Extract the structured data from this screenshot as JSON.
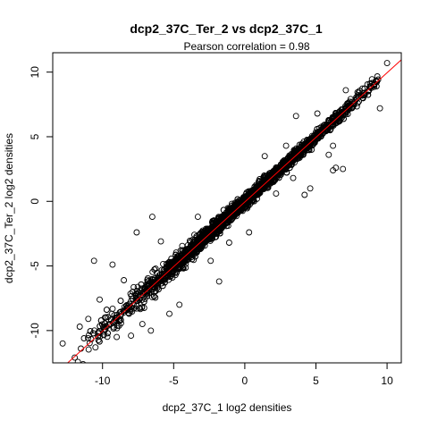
{
  "chart_data": {
    "type": "scatter",
    "title": "dcp2_37C_Ter_2 vs dcp2_37C_1",
    "subtitle": "Pearson correlation =  0.98",
    "xlabel": "dcp2_37C_1 log2 densities",
    "ylabel": "dcp2_37C_Ter_2 log2 densities",
    "xlim": [
      -13.5,
      11
    ],
    "ylim": [
      -12.5,
      11.5
    ],
    "xticks": [
      -10,
      -5,
      0,
      5,
      10
    ],
    "yticks": [
      -10,
      -5,
      0,
      5,
      10
    ],
    "grid": false,
    "marker": "open-circle",
    "point_color": "#000000",
    "fit_line": {
      "intercept": -0.05,
      "slope": 1.0,
      "color": "#ff0000"
    },
    "outliers": [
      {
        "x": -12.8,
        "y": -11.0
      },
      {
        "x": -11.3,
        "y": -10.6
      },
      {
        "x": -11.0,
        "y": -9.1
      },
      {
        "x": -10.5,
        "y": -11.3
      },
      {
        "x": -10.2,
        "y": -7.6
      },
      {
        "x": -10.6,
        "y": -4.6
      },
      {
        "x": -9.3,
        "y": -4.9
      },
      {
        "x": -9.0,
        "y": -10.5
      },
      {
        "x": -8.5,
        "y": -6.1
      },
      {
        "x": -8.0,
        "y": -10.4
      },
      {
        "x": -7.6,
        "y": -2.4
      },
      {
        "x": -6.6,
        "y": -10.0
      },
      {
        "x": -6.5,
        "y": -1.2
      },
      {
        "x": -5.9,
        "y": -3.1
      },
      {
        "x": -5.3,
        "y": -8.7
      },
      {
        "x": -4.6,
        "y": -8.0
      },
      {
        "x": -4.0,
        "y": -3.4
      },
      {
        "x": -3.3,
        "y": -1.2
      },
      {
        "x": -2.4,
        "y": -4.6
      },
      {
        "x": -1.1,
        "y": -3.2
      },
      {
        "x": 0.3,
        "y": -2.4
      },
      {
        "x": 1.4,
        "y": 3.5
      },
      {
        "x": 2.2,
        "y": 0.6
      },
      {
        "x": 2.9,
        "y": 4.3
      },
      {
        "x": 3.4,
        "y": 1.8
      },
      {
        "x": 4.2,
        "y": 0.5
      },
      {
        "x": 4.6,
        "y": 1.0
      },
      {
        "x": 5.1,
        "y": 6.8
      },
      {
        "x": 5.9,
        "y": 3.6
      },
      {
        "x": 6.2,
        "y": 2.4
      },
      {
        "x": 6.4,
        "y": 2.6
      },
      {
        "x": 6.2,
        "y": 4.3
      },
      {
        "x": 6.9,
        "y": 2.5
      },
      {
        "x": 7.1,
        "y": 8.6
      },
      {
        "x": 8.0,
        "y": 8.4
      },
      {
        "x": 9.5,
        "y": 7.2
      },
      {
        "x": 10.0,
        "y": 10.7
      },
      {
        "x": -1.8,
        "y": -6.2
      },
      {
        "x": -7.2,
        "y": -9.5
      },
      {
        "x": 3.6,
        "y": 6.6
      },
      {
        "x": -9.8,
        "y": -9.9
      },
      {
        "x": -11.6,
        "y": -9.7
      }
    ],
    "bulk_points": [
      {
        "x": -7.1,
        "y": -7.0
      },
      {
        "x": -6.8,
        "y": -6.5
      },
      {
        "x": -6.4,
        "y": -6.6
      },
      {
        "x": -6.1,
        "y": -5.9
      },
      {
        "x": -5.8,
        "y": -5.6
      },
      {
        "x": -5.5,
        "y": -5.8
      },
      {
        "x": -5.2,
        "y": -4.9
      },
      {
        "x": -4.9,
        "y": -5.1
      },
      {
        "x": -4.6,
        "y": -4.4
      },
      {
        "x": -4.3,
        "y": -4.6
      },
      {
        "x": -4.0,
        "y": -3.8
      },
      {
        "x": -3.7,
        "y": -3.9
      },
      {
        "x": -3.4,
        "y": -3.2
      },
      {
        "x": -3.1,
        "y": -3.3
      },
      {
        "x": -2.8,
        "y": -2.7
      },
      {
        "x": -2.5,
        "y": -2.4
      },
      {
        "x": -2.2,
        "y": -2.3
      },
      {
        "x": -1.9,
        "y": -1.8
      },
      {
        "x": -1.6,
        "y": -1.5
      },
      {
        "x": -1.3,
        "y": -1.4
      },
      {
        "x": -1.0,
        "y": -0.9
      },
      {
        "x": -0.7,
        "y": -0.8
      },
      {
        "x": -0.4,
        "y": -0.3
      },
      {
        "x": -0.1,
        "y": -0.2
      },
      {
        "x": 0.2,
        "y": 0.3
      },
      {
        "x": 0.5,
        "y": 0.4
      },
      {
        "x": 0.8,
        "y": 0.9
      },
      {
        "x": 1.1,
        "y": 1.0
      },
      {
        "x": 1.4,
        "y": 1.5
      },
      {
        "x": 1.7,
        "y": 1.6
      },
      {
        "x": 2.0,
        "y": 2.1
      },
      {
        "x": 2.3,
        "y": 2.2
      },
      {
        "x": 2.6,
        "y": 2.7
      },
      {
        "x": 2.9,
        "y": 2.8
      },
      {
        "x": 3.2,
        "y": 3.3
      },
      {
        "x": 3.5,
        "y": 3.4
      },
      {
        "x": 3.8,
        "y": 3.9
      },
      {
        "x": 4.1,
        "y": 4.0
      },
      {
        "x": 4.4,
        "y": 4.5
      },
      {
        "x": 4.7,
        "y": 4.6
      },
      {
        "x": 5.0,
        "y": 5.1
      },
      {
        "x": 5.3,
        "y": 5.2
      },
      {
        "x": 5.6,
        "y": 5.7
      },
      {
        "x": 5.9,
        "y": 5.8
      },
      {
        "x": 6.2,
        "y": 6.3
      },
      {
        "x": 6.5,
        "y": 6.4
      },
      {
        "x": 6.8,
        "y": 6.9
      },
      {
        "x": 7.1,
        "y": 7.0
      },
      {
        "x": 7.4,
        "y": 7.5
      },
      {
        "x": 7.7,
        "y": 7.6
      },
      {
        "x": 8.0,
        "y": 8.1
      },
      {
        "x": 8.4,
        "y": 8.2
      },
      {
        "x": 8.8,
        "y": 8.9
      },
      {
        "x": 9.2,
        "y": 9.3
      },
      {
        "x": -8.0,
        "y": -7.7
      },
      {
        "x": -8.5,
        "y": -8.6
      },
      {
        "x": -9.0,
        "y": -8.8
      },
      {
        "x": -7.5,
        "y": -7.2
      },
      {
        "x": -5.0,
        "y": -5.3
      },
      {
        "x": -3.0,
        "y": -2.9
      },
      {
        "x": -1.5,
        "y": -1.6
      },
      {
        "x": 0.0,
        "y": 0.1
      },
      {
        "x": 1.5,
        "y": 1.6
      },
      {
        "x": 3.0,
        "y": 3.1
      },
      {
        "x": 4.5,
        "y": 4.3
      }
    ]
  }
}
